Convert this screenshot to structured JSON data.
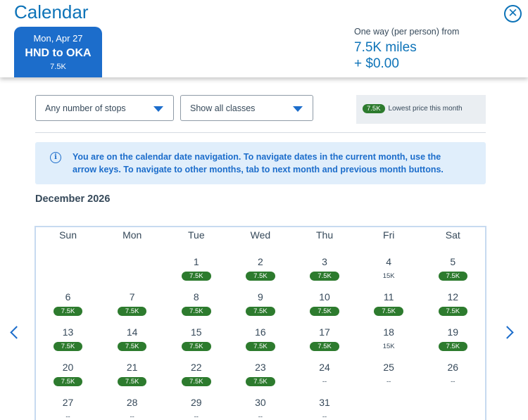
{
  "header": {
    "title": "Calendar",
    "close_icon": "close-icon"
  },
  "flight": {
    "date": "Mon, Apr 27",
    "route": "HND to OKA",
    "price": "7.5K"
  },
  "fare": {
    "label": "One way (per person) from",
    "miles": "7.5K miles",
    "cash": "+ $0.00"
  },
  "filters": {
    "stops": "Any number of stops",
    "classes": "Show all classes"
  },
  "legend": {
    "pill": "7.5K",
    "text": "Lowest price this month"
  },
  "alert": {
    "text": "You are on the calendar date navigation. To navigate dates in the current month, use the arrow keys. To navigate to other months, tab to next month and previous month buttons."
  },
  "calendar": {
    "month": "December 2026",
    "weekdays": [
      "Sun",
      "Mon",
      "Tue",
      "Wed",
      "Thu",
      "Fri",
      "Sat"
    ],
    "weeks": [
      [
        {
          "day": "",
          "price": "",
          "low": false
        },
        {
          "day": "",
          "price": "",
          "low": false
        },
        {
          "day": "1",
          "price": "7.5K",
          "low": true
        },
        {
          "day": "2",
          "price": "7.5K",
          "low": true
        },
        {
          "day": "3",
          "price": "7.5K",
          "low": true
        },
        {
          "day": "4",
          "price": "15K",
          "low": false
        },
        {
          "day": "5",
          "price": "7.5K",
          "low": true
        }
      ],
      [
        {
          "day": "6",
          "price": "7.5K",
          "low": true
        },
        {
          "day": "7",
          "price": "7.5K",
          "low": true
        },
        {
          "day": "8",
          "price": "7.5K",
          "low": true
        },
        {
          "day": "9",
          "price": "7.5K",
          "low": true
        },
        {
          "day": "10",
          "price": "7.5K",
          "low": true
        },
        {
          "day": "11",
          "price": "7.5K",
          "low": true
        },
        {
          "day": "12",
          "price": "7.5K",
          "low": true
        }
      ],
      [
        {
          "day": "13",
          "price": "7.5K",
          "low": true
        },
        {
          "day": "14",
          "price": "7.5K",
          "low": true
        },
        {
          "day": "15",
          "price": "7.5K",
          "low": true
        },
        {
          "day": "16",
          "price": "7.5K",
          "low": true
        },
        {
          "day": "17",
          "price": "7.5K",
          "low": true
        },
        {
          "day": "18",
          "price": "15K",
          "low": false
        },
        {
          "day": "19",
          "price": "7.5K",
          "low": true
        }
      ],
      [
        {
          "day": "20",
          "price": "7.5K",
          "low": true
        },
        {
          "day": "21",
          "price": "7.5K",
          "low": true
        },
        {
          "day": "22",
          "price": "7.5K",
          "low": true
        },
        {
          "day": "23",
          "price": "7.5K",
          "low": true
        },
        {
          "day": "24",
          "price": "--",
          "low": false
        },
        {
          "day": "25",
          "price": "--",
          "low": false
        },
        {
          "day": "26",
          "price": "--",
          "low": false
        }
      ],
      [
        {
          "day": "27",
          "price": "--",
          "low": false
        },
        {
          "day": "28",
          "price": "--",
          "low": false
        },
        {
          "day": "29",
          "price": "--",
          "low": false
        },
        {
          "day": "30",
          "price": "--",
          "low": false
        },
        {
          "day": "31",
          "price": "--",
          "low": false
        },
        {
          "day": "",
          "price": "",
          "low": false
        },
        {
          "day": "",
          "price": "",
          "low": false
        }
      ]
    ]
  },
  "navigation": {
    "prev_icon": "chevron-left-icon",
    "next_icon": "chevron-right-icon"
  },
  "colors": {
    "accent": "#1c6dcb",
    "title_blue": "#0d73b8",
    "low_price_green": "#2d7b2e",
    "alert_bg": "#e0eefb"
  }
}
